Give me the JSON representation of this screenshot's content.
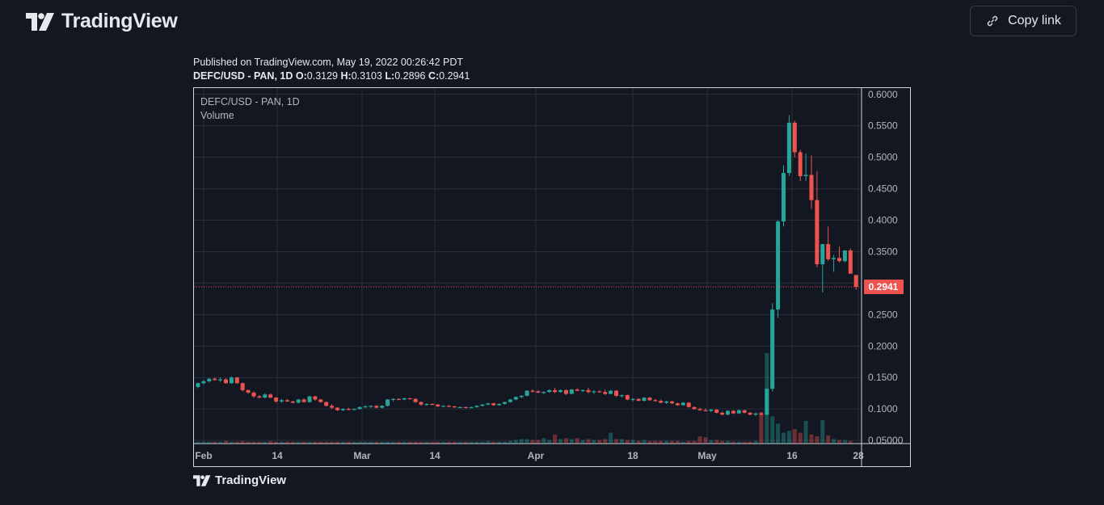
{
  "header": {
    "brand": "TradingView",
    "copy_link_label": "Copy link"
  },
  "meta": {
    "published": "Published on TradingView.com, May 19, 2022 00:26:42 PDT",
    "symbol_line": "DEFC/USD - PAN, 1D",
    "open_label": "O:",
    "open": "0.3129",
    "high_label": "H:",
    "high": "0.3103",
    "low_label": "L:",
    "low": "0.2896",
    "close_label": "C:",
    "close": "0.2941"
  },
  "chart": {
    "legend_symbol": "DEFC/USD - PAN, 1D",
    "legend_volume": "Volume",
    "last_price_label": "0.2941",
    "colors": {
      "up": "#26a69a",
      "down": "#ef5350",
      "grid": "#2a2e39",
      "axis_text": "#b2b5be"
    }
  },
  "chart_data": {
    "type": "candlestick",
    "symbol": "DEFC/USD - PAN",
    "interval": "1D",
    "ylim": [
      0.045,
      0.61
    ],
    "y_ticks": [
      "0.6000",
      "0.5500",
      "0.5000",
      "0.4500",
      "0.4000",
      "0.3500",
      "0.3000",
      "0.2500",
      "0.2000",
      "0.1500",
      "0.1000",
      "0.05000"
    ],
    "x_ticks": [
      "Feb",
      "14",
      "Mar",
      "14",
      "Apr",
      "18",
      "May",
      "16",
      "28"
    ],
    "last_price": 0.2941,
    "candles_ohlc": [
      [
        0.135,
        0.142,
        0.133,
        0.141
      ],
      [
        0.141,
        0.146,
        0.139,
        0.144
      ],
      [
        0.144,
        0.149,
        0.142,
        0.148
      ],
      [
        0.148,
        0.15,
        0.145,
        0.146
      ],
      [
        0.146,
        0.15,
        0.143,
        0.147
      ],
      [
        0.147,
        0.149,
        0.14,
        0.141
      ],
      [
        0.141,
        0.152,
        0.14,
        0.15
      ],
      [
        0.15,
        0.151,
        0.14,
        0.141
      ],
      [
        0.141,
        0.142,
        0.128,
        0.13
      ],
      [
        0.13,
        0.131,
        0.124,
        0.126
      ],
      [
        0.126,
        0.128,
        0.118,
        0.12
      ],
      [
        0.12,
        0.122,
        0.117,
        0.118
      ],
      [
        0.118,
        0.125,
        0.117,
        0.123
      ],
      [
        0.123,
        0.125,
        0.117,
        0.118
      ],
      [
        0.118,
        0.119,
        0.11,
        0.112
      ],
      [
        0.112,
        0.116,
        0.11,
        0.114
      ],
      [
        0.114,
        0.116,
        0.111,
        0.112
      ],
      [
        0.112,
        0.113,
        0.109,
        0.11
      ],
      [
        0.11,
        0.116,
        0.109,
        0.115
      ],
      [
        0.115,
        0.117,
        0.11,
        0.111
      ],
      [
        0.111,
        0.121,
        0.11,
        0.12
      ],
      [
        0.12,
        0.121,
        0.113,
        0.115
      ],
      [
        0.115,
        0.116,
        0.11,
        0.111
      ],
      [
        0.111,
        0.112,
        0.104,
        0.105
      ],
      [
        0.105,
        0.108,
        0.1,
        0.102
      ],
      [
        0.102,
        0.103,
        0.097,
        0.098
      ],
      [
        0.098,
        0.101,
        0.097,
        0.1
      ],
      [
        0.1,
        0.102,
        0.098,
        0.099
      ],
      [
        0.099,
        0.101,
        0.098,
        0.1
      ],
      [
        0.1,
        0.104,
        0.099,
        0.103
      ],
      [
        0.103,
        0.106,
        0.102,
        0.104
      ],
      [
        0.104,
        0.106,
        0.102,
        0.105
      ],
      [
        0.105,
        0.106,
        0.101,
        0.102
      ],
      [
        0.102,
        0.106,
        0.101,
        0.105
      ],
      [
        0.105,
        0.116,
        0.104,
        0.115
      ],
      [
        0.115,
        0.117,
        0.112,
        0.116
      ],
      [
        0.116,
        0.117,
        0.114,
        0.115
      ],
      [
        0.115,
        0.118,
        0.114,
        0.117
      ],
      [
        0.117,
        0.118,
        0.115,
        0.116
      ],
      [
        0.116,
        0.117,
        0.11,
        0.111
      ],
      [
        0.111,
        0.112,
        0.105,
        0.107
      ],
      [
        0.107,
        0.109,
        0.105,
        0.108
      ],
      [
        0.108,
        0.109,
        0.106,
        0.107
      ],
      [
        0.107,
        0.108,
        0.103,
        0.104
      ],
      [
        0.104,
        0.106,
        0.103,
        0.105
      ],
      [
        0.105,
        0.106,
        0.103,
        0.104
      ],
      [
        0.104,
        0.105,
        0.102,
        0.103
      ],
      [
        0.103,
        0.104,
        0.102,
        0.103
      ],
      [
        0.103,
        0.104,
        0.101,
        0.102
      ],
      [
        0.102,
        0.104,
        0.101,
        0.103
      ],
      [
        0.103,
        0.106,
        0.102,
        0.105
      ],
      [
        0.105,
        0.108,
        0.104,
        0.107
      ],
      [
        0.107,
        0.11,
        0.106,
        0.109
      ],
      [
        0.109,
        0.11,
        0.105,
        0.106
      ],
      [
        0.106,
        0.109,
        0.105,
        0.108
      ],
      [
        0.108,
        0.112,
        0.107,
        0.111
      ],
      [
        0.111,
        0.116,
        0.11,
        0.115
      ],
      [
        0.115,
        0.12,
        0.114,
        0.119
      ],
      [
        0.119,
        0.122,
        0.117,
        0.121
      ],
      [
        0.121,
        0.13,
        0.12,
        0.129
      ],
      [
        0.129,
        0.131,
        0.126,
        0.128
      ],
      [
        0.128,
        0.13,
        0.125,
        0.126
      ],
      [
        0.126,
        0.128,
        0.124,
        0.127
      ],
      [
        0.127,
        0.131,
        0.126,
        0.13
      ],
      [
        0.13,
        0.134,
        0.125,
        0.127
      ],
      [
        0.127,
        0.131,
        0.126,
        0.13
      ],
      [
        0.13,
        0.131,
        0.122,
        0.124
      ],
      [
        0.124,
        0.132,
        0.123,
        0.131
      ],
      [
        0.131,
        0.133,
        0.128,
        0.129
      ],
      [
        0.129,
        0.131,
        0.127,
        0.13
      ],
      [
        0.13,
        0.134,
        0.125,
        0.127
      ],
      [
        0.127,
        0.13,
        0.124,
        0.128
      ],
      [
        0.128,
        0.13,
        0.126,
        0.127
      ],
      [
        0.127,
        0.131,
        0.122,
        0.124
      ],
      [
        0.124,
        0.13,
        0.123,
        0.129
      ],
      [
        0.129,
        0.13,
        0.119,
        0.121
      ],
      [
        0.121,
        0.123,
        0.118,
        0.122
      ],
      [
        0.122,
        0.123,
        0.114,
        0.115
      ],
      [
        0.115,
        0.117,
        0.112,
        0.116
      ],
      [
        0.116,
        0.117,
        0.112,
        0.113
      ],
      [
        0.113,
        0.119,
        0.112,
        0.118
      ],
      [
        0.118,
        0.119,
        0.113,
        0.114
      ],
      [
        0.114,
        0.116,
        0.112,
        0.113
      ],
      [
        0.113,
        0.115,
        0.109,
        0.11
      ],
      [
        0.11,
        0.113,
        0.108,
        0.112
      ],
      [
        0.112,
        0.113,
        0.108,
        0.109
      ],
      [
        0.109,
        0.11,
        0.105,
        0.106
      ],
      [
        0.106,
        0.111,
        0.105,
        0.11
      ],
      [
        0.11,
        0.111,
        0.102,
        0.103
      ],
      [
        0.103,
        0.104,
        0.099,
        0.1
      ],
      [
        0.1,
        0.102,
        0.097,
        0.098
      ],
      [
        0.098,
        0.101,
        0.096,
        0.097
      ],
      [
        0.097,
        0.1,
        0.095,
        0.099
      ],
      [
        0.099,
        0.1,
        0.093,
        0.094
      ],
      [
        0.094,
        0.096,
        0.09,
        0.091
      ],
      [
        0.091,
        0.098,
        0.09,
        0.097
      ],
      [
        0.097,
        0.098,
        0.092,
        0.093
      ],
      [
        0.093,
        0.099,
        0.092,
        0.098
      ],
      [
        0.098,
        0.099,
        0.093,
        0.094
      ],
      [
        0.094,
        0.095,
        0.09,
        0.091
      ],
      [
        0.091,
        0.094,
        0.089,
        0.093
      ],
      [
        0.093,
        0.094,
        0.09,
        0.091
      ],
      [
        0.091,
        0.133,
        0.09,
        0.132
      ],
      [
        0.132,
        0.268,
        0.128,
        0.258
      ],
      [
        0.258,
        0.4,
        0.245,
        0.398
      ],
      [
        0.398,
        0.487,
        0.39,
        0.475
      ],
      [
        0.475,
        0.567,
        0.47,
        0.555
      ],
      [
        0.555,
        0.558,
        0.5,
        0.508
      ],
      [
        0.508,
        0.512,
        0.462,
        0.47
      ],
      [
        0.47,
        0.506,
        0.462,
        0.472
      ],
      [
        0.472,
        0.503,
        0.418,
        0.432
      ],
      [
        0.432,
        0.478,
        0.325,
        0.33
      ],
      [
        0.33,
        0.362,
        0.285,
        0.362
      ],
      [
        0.362,
        0.39,
        0.335,
        0.338
      ],
      [
        0.338,
        0.345,
        0.318,
        0.34
      ],
      [
        0.34,
        0.358,
        0.333,
        0.335
      ],
      [
        0.335,
        0.352,
        0.333,
        0.352
      ],
      [
        0.352,
        0.355,
        0.315,
        0.315
      ],
      [
        0.3129,
        0.3103,
        0.2896,
        0.2941
      ]
    ],
    "volume_relative": [
      0.02,
      0.02,
      0.02,
      0.02,
      0.02,
      0.03,
      0.02,
      0.02,
      0.03,
      0.02,
      0.02,
      0.02,
      0.02,
      0.03,
      0.02,
      0.02,
      0.02,
      0.02,
      0.02,
      0.02,
      0.02,
      0.02,
      0.02,
      0.02,
      0.02,
      0.02,
      0.02,
      0.02,
      0.02,
      0.02,
      0.02,
      0.02,
      0.02,
      0.02,
      0.02,
      0.02,
      0.02,
      0.02,
      0.02,
      0.02,
      0.02,
      0.02,
      0.02,
      0.02,
      0.02,
      0.02,
      0.02,
      0.02,
      0.02,
      0.02,
      0.02,
      0.02,
      0.03,
      0.02,
      0.02,
      0.02,
      0.03,
      0.04,
      0.05,
      0.05,
      0.04,
      0.04,
      0.06,
      0.04,
      0.1,
      0.05,
      0.06,
      0.05,
      0.06,
      0.04,
      0.05,
      0.04,
      0.04,
      0.05,
      0.12,
      0.05,
      0.05,
      0.04,
      0.04,
      0.03,
      0.04,
      0.03,
      0.03,
      0.03,
      0.03,
      0.03,
      0.03,
      0.02,
      0.03,
      0.03,
      0.08,
      0.07,
      0.04,
      0.04,
      0.03,
      0.03,
      0.02,
      0.02,
      0.02,
      0.02,
      0.03,
      0.35,
      1.0,
      0.3,
      0.22,
      0.12,
      0.14,
      0.16,
      0.12,
      0.25,
      0.1,
      0.08,
      0.26,
      0.09,
      0.05,
      0.04,
      0.04,
      0.03
    ]
  }
}
